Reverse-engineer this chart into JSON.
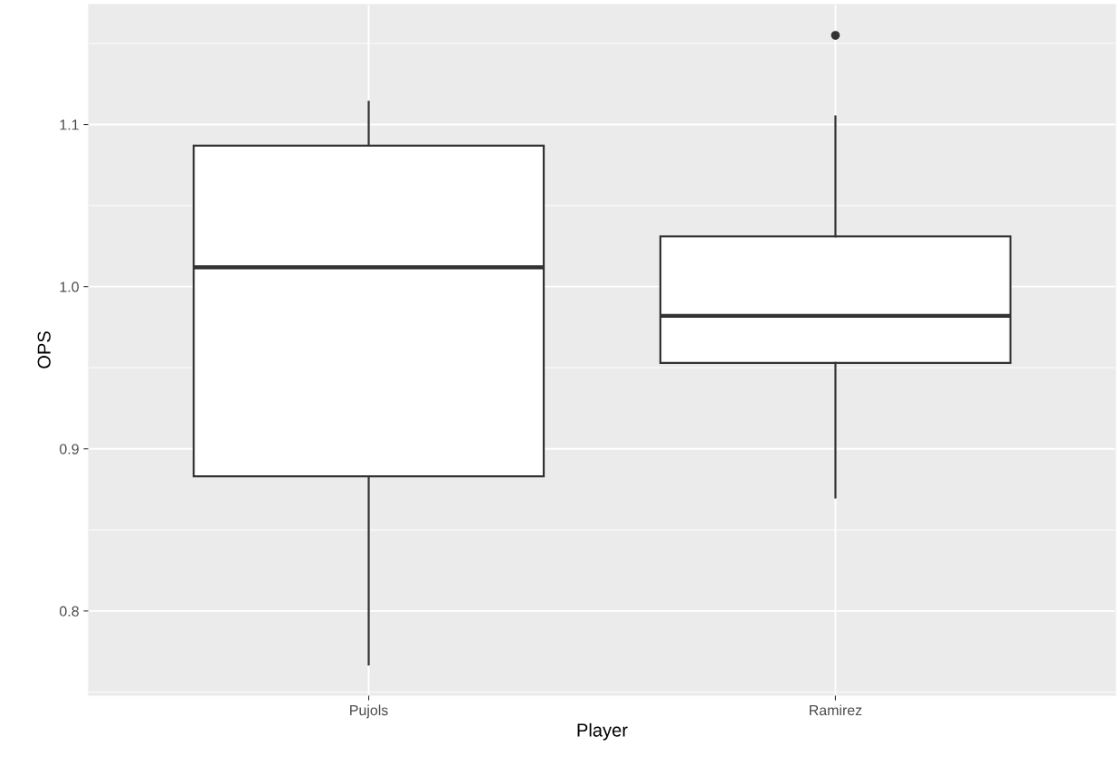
{
  "chart_data": {
    "type": "box",
    "xlabel": "Player",
    "ylabel": "OPS",
    "categories": [
      "Pujols",
      "Ramirez"
    ],
    "boxes": [
      {
        "low": 0.767,
        "q1": 0.883,
        "median": 1.012,
        "q3": 1.087,
        "high": 1.114
      },
      {
        "low": 0.87,
        "q1": 0.953,
        "median": 0.982,
        "q3": 1.031,
        "high": 1.105,
        "outliers": [
          1.155
        ]
      }
    ],
    "ylim": [
      0.748,
      1.174
    ],
    "yticks": [
      {
        "value": 0.8,
        "label": "0.8"
      },
      {
        "value": 0.9,
        "label": "0.9"
      },
      {
        "value": 1.0,
        "label": "1.0"
      },
      {
        "value": 1.1,
        "label": "1.1"
      }
    ],
    "grid": true
  }
}
